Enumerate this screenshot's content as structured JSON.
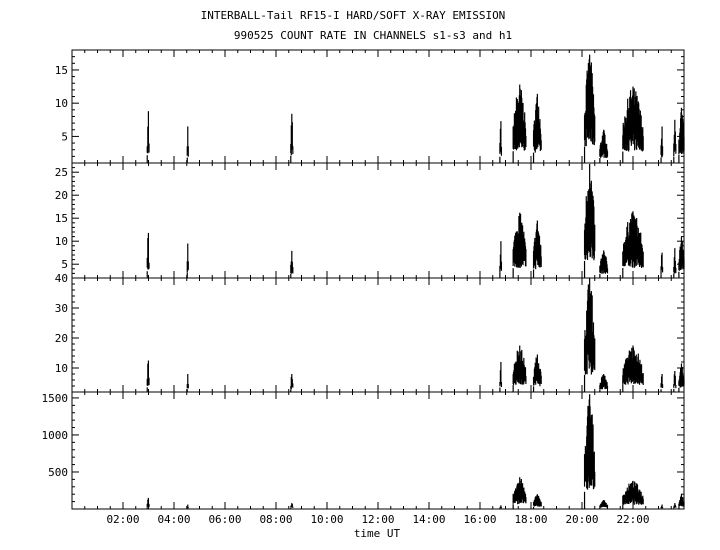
{
  "title_line1": "INTERBALL-Tail RF15-I HARD/SOFT X-RAY EMISSION",
  "title_line2": "990525  COUNT RATE IN CHANNELS s1-s3 and h1",
  "xlabel": "time UT",
  "chart_data": {
    "type": "bar",
    "x_unit": "hours UT",
    "xlim": [
      0.0,
      24.0
    ],
    "x_ticks": [
      2,
      4,
      6,
      8,
      10,
      12,
      14,
      16,
      18,
      20,
      22
    ],
    "x_tick_labels": [
      "02:00",
      "04:00",
      "06:00",
      "08:00",
      "10:00",
      "12:00",
      "14:00",
      "16:00",
      "18:00",
      "20:00",
      "22:00"
    ],
    "panels": [
      {
        "name": "s1",
        "ylim": [
          1,
          18
        ],
        "y_ticks": [
          5,
          10,
          15
        ],
        "y_tick_labels": [
          "5",
          "10",
          "15"
        ],
        "bursts": [
          {
            "start": 2.95,
            "end": 3.02,
            "peak": 8.8
          },
          {
            "start": 4.52,
            "end": 4.56,
            "peak": 6.5
          },
          {
            "start": 8.58,
            "end": 8.66,
            "peak": 8.4
          },
          {
            "start": 16.78,
            "end": 16.84,
            "peak": 7.3
          },
          {
            "start": 17.3,
            "end": 17.8,
            "peak": 12.8
          },
          {
            "start": 18.1,
            "end": 18.4,
            "peak": 11.4
          },
          {
            "start": 20.1,
            "end": 20.5,
            "peak": 17.3
          },
          {
            "start": 20.7,
            "end": 21.0,
            "peak": 6.0
          },
          {
            "start": 21.6,
            "end": 22.4,
            "peak": 12.5
          },
          {
            "start": 23.1,
            "end": 23.16,
            "peak": 6.5
          },
          {
            "start": 23.6,
            "end": 23.68,
            "peak": 7.5
          },
          {
            "start": 23.8,
            "end": 24.0,
            "peak": 9.3
          }
        ]
      },
      {
        "name": "s2",
        "ylim": [
          2,
          27
        ],
        "y_ticks": [
          5,
          10,
          15,
          20,
          25
        ],
        "y_tick_labels": [
          "5",
          "10",
          "15",
          "20",
          "25"
        ],
        "bursts": [
          {
            "start": 2.95,
            "end": 3.02,
            "peak": 11.8
          },
          {
            "start": 4.52,
            "end": 4.56,
            "peak": 9.5
          },
          {
            "start": 8.58,
            "end": 8.66,
            "peak": 7.9
          },
          {
            "start": 16.78,
            "end": 16.84,
            "peak": 10.0
          },
          {
            "start": 17.3,
            "end": 17.8,
            "peak": 16.2
          },
          {
            "start": 18.1,
            "end": 18.4,
            "peak": 14.5
          },
          {
            "start": 20.1,
            "end": 20.5,
            "peak": 26.8
          },
          {
            "start": 20.7,
            "end": 21.0,
            "peak": 8.0
          },
          {
            "start": 21.6,
            "end": 22.4,
            "peak": 16.5
          },
          {
            "start": 23.1,
            "end": 23.16,
            "peak": 7.5
          },
          {
            "start": 23.6,
            "end": 23.68,
            "peak": 8.5
          },
          {
            "start": 23.8,
            "end": 24.0,
            "peak": 11.0
          }
        ]
      },
      {
        "name": "s3",
        "ylim": [
          2,
          40
        ],
        "y_ticks": [
          10,
          20,
          30,
          40
        ],
        "y_tick_labels": [
          "10",
          "20",
          "30",
          "40"
        ],
        "bursts": [
          {
            "start": 2.95,
            "end": 3.02,
            "peak": 12.5
          },
          {
            "start": 4.52,
            "end": 4.56,
            "peak": 8.0
          },
          {
            "start": 8.58,
            "end": 8.66,
            "peak": 8.0
          },
          {
            "start": 16.78,
            "end": 16.84,
            "peak": 12.0
          },
          {
            "start": 17.3,
            "end": 17.8,
            "peak": 17.5
          },
          {
            "start": 18.1,
            "end": 18.4,
            "peak": 14.5
          },
          {
            "start": 20.1,
            "end": 20.5,
            "peak": 40.0
          },
          {
            "start": 20.7,
            "end": 21.0,
            "peak": 8.0
          },
          {
            "start": 21.6,
            "end": 22.4,
            "peak": 17.5
          },
          {
            "start": 23.1,
            "end": 23.16,
            "peak": 8.0
          },
          {
            "start": 23.6,
            "end": 23.68,
            "peak": 9.0
          },
          {
            "start": 23.8,
            "end": 24.0,
            "peak": 11.5
          }
        ]
      },
      {
        "name": "h1",
        "ylim": [
          0,
          1580
        ],
        "y_ticks": [
          500,
          1000,
          1500
        ],
        "y_tick_labels": [
          "500",
          "1000",
          "1500"
        ],
        "bursts": [
          {
            "start": 2.95,
            "end": 3.02,
            "peak": 150
          },
          {
            "start": 4.52,
            "end": 4.56,
            "peak": 60
          },
          {
            "start": 8.58,
            "end": 8.66,
            "peak": 80
          },
          {
            "start": 16.78,
            "end": 16.84,
            "peak": 50
          },
          {
            "start": 17.3,
            "end": 17.8,
            "peak": 430
          },
          {
            "start": 18.1,
            "end": 18.4,
            "peak": 200
          },
          {
            "start": 20.1,
            "end": 20.5,
            "peak": 1550
          },
          {
            "start": 20.7,
            "end": 21.0,
            "peak": 120
          },
          {
            "start": 21.6,
            "end": 22.4,
            "peak": 380
          },
          {
            "start": 23.1,
            "end": 23.16,
            "peak": 60
          },
          {
            "start": 23.6,
            "end": 23.68,
            "peak": 80
          },
          {
            "start": 23.8,
            "end": 24.0,
            "peak": 200
          }
        ]
      }
    ]
  }
}
